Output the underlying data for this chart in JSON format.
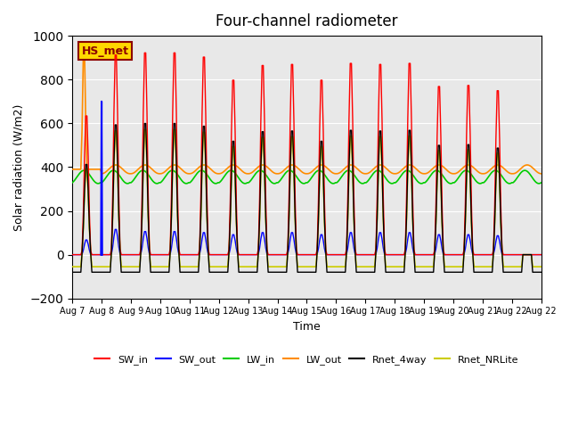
{
  "title": "Four-channel radiometer",
  "xlabel": "Time",
  "ylabel": "Solar radiation (W/m2)",
  "ylim": [
    -200,
    1000
  ],
  "yticks": [
    -200,
    0,
    200,
    400,
    600,
    800,
    1000
  ],
  "annotation_text": "HS_met",
  "annotation_box_color": "#FFD700",
  "annotation_text_color": "#8B0000",
  "annotation_border_color": "#8B0000",
  "background_color": "#E8E8E8",
  "legend_entries": [
    "SW_in",
    "SW_out",
    "LW_in",
    "LW_out",
    "Rnet_4way",
    "Rnet_NRLite"
  ],
  "legend_colors": [
    "#FF0000",
    "#0000FF",
    "#00CC00",
    "#FF8C00",
    "#000000",
    "#CCCC00"
  ],
  "x_ticklabels": [
    "Aug 7",
    "Aug 8",
    "Aug 9",
    "Aug 10",
    "Aug 11",
    "Aug 12",
    "Aug 13",
    "Aug 14",
    "Aug 15",
    "Aug 16",
    "Aug 17",
    "Aug 18",
    "Aug 19",
    "Aug 20",
    "Aug 21",
    "Aug 22"
  ],
  "n_days": 16,
  "start_day": 7
}
